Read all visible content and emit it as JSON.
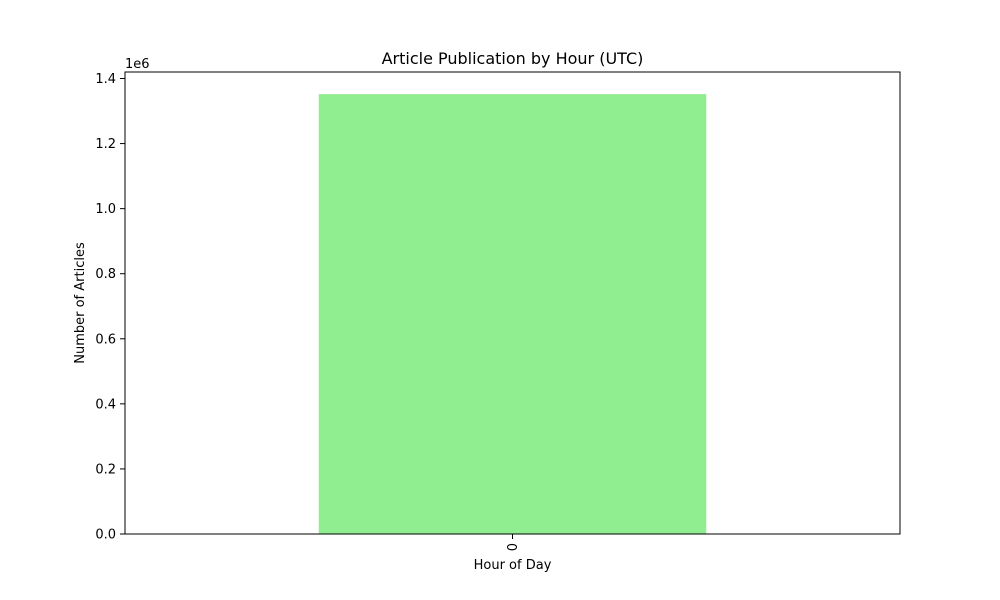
{
  "chart_data": {
    "type": "bar",
    "title": "Article Publication by Hour (UTC)",
    "xlabel": "Hour of Day",
    "ylabel": "Number of Articles",
    "y_scale_label": "1e6",
    "categories": [
      "0"
    ],
    "values": [
      1352000
    ],
    "ylim": [
      0,
      1420000
    ],
    "y_ticks": [
      0,
      200000,
      400000,
      600000,
      800000,
      1000000,
      1200000,
      1400000
    ],
    "y_tick_labels": [
      "0.0",
      "0.2",
      "0.4",
      "0.6",
      "0.8",
      "1.0",
      "1.2",
      "1.4"
    ],
    "bar_color": "#90ee90",
    "grid": false,
    "legend": "none"
  }
}
